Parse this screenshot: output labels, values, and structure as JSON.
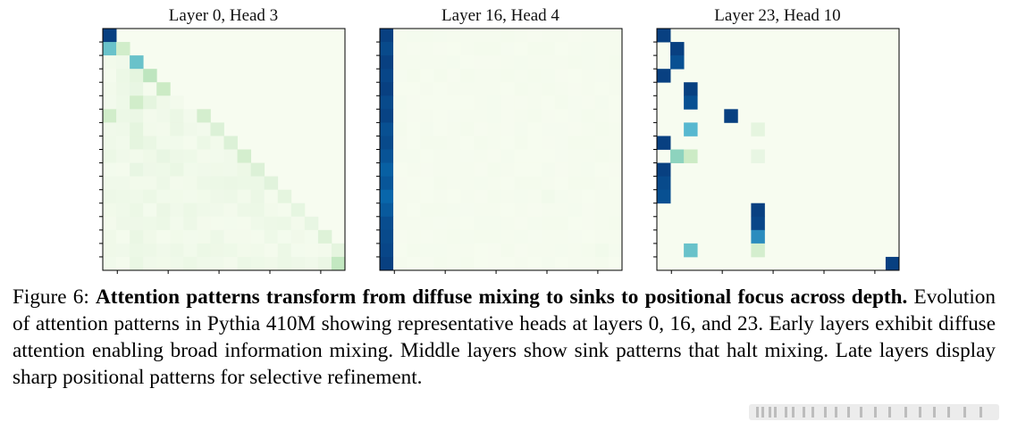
{
  "figure": {
    "label": "Figure 6:",
    "caption_bold": "Attention patterns transform from diffuse mixing to sinks to positional focus across depth.",
    "caption_text": " Evolution of attention patterns in Pythia 410M showing representative heads at layers 0, 16, and 23. Early layers exhibit diffuse attention enabling broad information mixing. Middle layers show sink patterns that halt mixing. Late layers display sharp positional patterns for selective refinement."
  },
  "chart_data": [
    {
      "type": "heatmap",
      "title": "Layer 0, Head 3",
      "n": 18,
      "colormap": "GnBu",
      "vmax": 1.0,
      "pattern": "diffuse_causal",
      "cells": [
        [
          0,
          0,
          1.0
        ],
        [
          1,
          0,
          0.55
        ],
        [
          1,
          1,
          0.22
        ],
        [
          2,
          2,
          0.55
        ],
        [
          3,
          3,
          0.3
        ],
        [
          3,
          2,
          0.1
        ],
        [
          4,
          4,
          0.25
        ],
        [
          4,
          2,
          0.08
        ],
        [
          5,
          2,
          0.22
        ],
        [
          5,
          3,
          0.1
        ],
        [
          6,
          0,
          0.22
        ],
        [
          6,
          7,
          0.2
        ],
        [
          7,
          2,
          0.1
        ],
        [
          7,
          8,
          0.15
        ],
        [
          8,
          2,
          0.1
        ],
        [
          8,
          9,
          0.15
        ],
        [
          8,
          3,
          0.07
        ],
        [
          9,
          10,
          0.2
        ],
        [
          9,
          4,
          0.08
        ],
        [
          10,
          11,
          0.15
        ],
        [
          10,
          2,
          0.08
        ],
        [
          10,
          5,
          0.07
        ],
        [
          11,
          12,
          0.12
        ],
        [
          12,
          13,
          0.1
        ],
        [
          12,
          3,
          0.06
        ],
        [
          13,
          14,
          0.09
        ],
        [
          13,
          2,
          0.06
        ],
        [
          14,
          15,
          0.08
        ],
        [
          15,
          16,
          0.14
        ],
        [
          15,
          2,
          0.07
        ],
        [
          16,
          17,
          0.1
        ],
        [
          16,
          2,
          0.06
        ],
        [
          17,
          17,
          0.28
        ],
        [
          17,
          2,
          0.07
        ]
      ]
    },
    {
      "type": "heatmap",
      "title": "Layer 16, Head 4",
      "n": 18,
      "colormap": "GnBu",
      "vmax": 1.0,
      "pattern": "sink_column",
      "cells": [
        [
          0,
          0,
          1.0
        ],
        [
          1,
          0,
          0.97
        ],
        [
          2,
          0,
          1.0
        ],
        [
          3,
          0,
          0.98
        ],
        [
          4,
          0,
          1.0
        ],
        [
          5,
          0,
          0.97
        ],
        [
          6,
          0,
          0.99
        ],
        [
          7,
          0,
          0.95
        ],
        [
          8,
          0,
          0.97
        ],
        [
          9,
          0,
          0.94
        ],
        [
          10,
          0,
          0.9
        ],
        [
          11,
          0,
          0.93
        ],
        [
          12,
          0,
          0.88
        ],
        [
          13,
          0,
          0.92
        ],
        [
          14,
          0,
          0.96
        ],
        [
          15,
          0,
          0.97
        ],
        [
          16,
          0,
          0.98
        ],
        [
          17,
          0,
          1.0
        ],
        [
          12,
          12,
          0.03
        ],
        [
          16,
          16,
          0.03
        ]
      ]
    },
    {
      "type": "heatmap",
      "title": "Layer 23, Head 10",
      "n": 18,
      "colormap": "GnBu",
      "vmax": 1.0,
      "pattern": "positional",
      "cells": [
        [
          0,
          0,
          1.0
        ],
        [
          1,
          1,
          1.0
        ],
        [
          2,
          1,
          0.95
        ],
        [
          3,
          0,
          1.0
        ],
        [
          4,
          2,
          1.0
        ],
        [
          5,
          2,
          0.95
        ],
        [
          6,
          5,
          1.0
        ],
        [
          7,
          2,
          0.6
        ],
        [
          7,
          7,
          0.1
        ],
        [
          8,
          0,
          1.0
        ],
        [
          9,
          1,
          0.45
        ],
        [
          9,
          2,
          0.25
        ],
        [
          9,
          7,
          0.08
        ],
        [
          10,
          0,
          1.0
        ],
        [
          11,
          0,
          0.97
        ],
        [
          12,
          0,
          0.95
        ],
        [
          13,
          7,
          1.0
        ],
        [
          14,
          7,
          0.98
        ],
        [
          15,
          7,
          0.75
        ],
        [
          16,
          2,
          0.55
        ],
        [
          16,
          7,
          0.2
        ],
        [
          17,
          17,
          1.0
        ]
      ]
    }
  ]
}
